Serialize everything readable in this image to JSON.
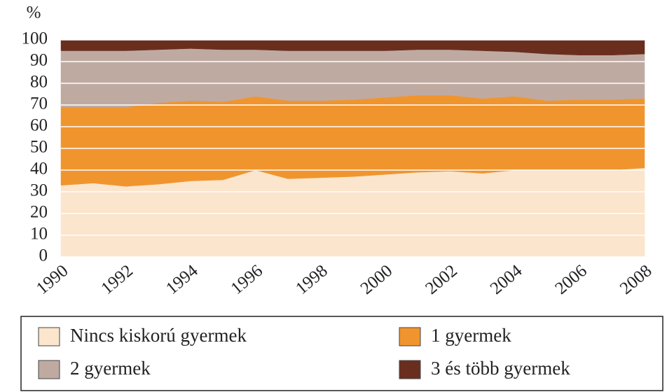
{
  "chart_data": {
    "type": "stacked_area",
    "y_label": "%",
    "x": [
      1990,
      1991,
      1992,
      1993,
      1994,
      1995,
      1996,
      1997,
      1998,
      1999,
      2000,
      2001,
      2002,
      2003,
      2004,
      2005,
      2006,
      2007,
      2008
    ],
    "series": [
      {
        "name": "Nincs kiskorú gyermek",
        "color": "#fbe5cc",
        "values": [
          33,
          34,
          32.5,
          33.5,
          35,
          35.5,
          40,
          36,
          36.5,
          37,
          38,
          39,
          39.5,
          38.5,
          40,
          40,
          40,
          40,
          41
        ]
      },
      {
        "name": "1 gyermek",
        "color": "#f0952e",
        "values": [
          36,
          35,
          36.5,
          37.5,
          37,
          36,
          34,
          36,
          35.5,
          35.5,
          35.5,
          35.5,
          35,
          34.5,
          34,
          32,
          32.5,
          32.5,
          32
        ]
      },
      {
        "name": "2 gyermek",
        "color": "#bfaaa2",
        "values": [
          26,
          26,
          26,
          24.5,
          24,
          24,
          21.5,
          23,
          23,
          22.5,
          21.5,
          21,
          21,
          22,
          20.5,
          21.5,
          20.5,
          20.5,
          20.5
        ]
      },
      {
        "name": "3 és több gyermek",
        "color": "#6a2e1f",
        "values": [
          5,
          5,
          5,
          4.5,
          4,
          4.5,
          4.5,
          5,
          5,
          5,
          5,
          4.5,
          4.5,
          5,
          5.5,
          6.5,
          7,
          7,
          6.5
        ]
      }
    ],
    "xlim": [
      1990,
      2008
    ],
    "xticks": [
      1990,
      1992,
      1994,
      1996,
      1998,
      2000,
      2002,
      2004,
      2006,
      2008
    ],
    "ylim": [
      0,
      100
    ],
    "yticks": [
      0,
      10,
      20,
      30,
      40,
      50,
      60,
      70,
      80,
      90,
      100
    ],
    "grid": true,
    "legend": "bottom"
  }
}
